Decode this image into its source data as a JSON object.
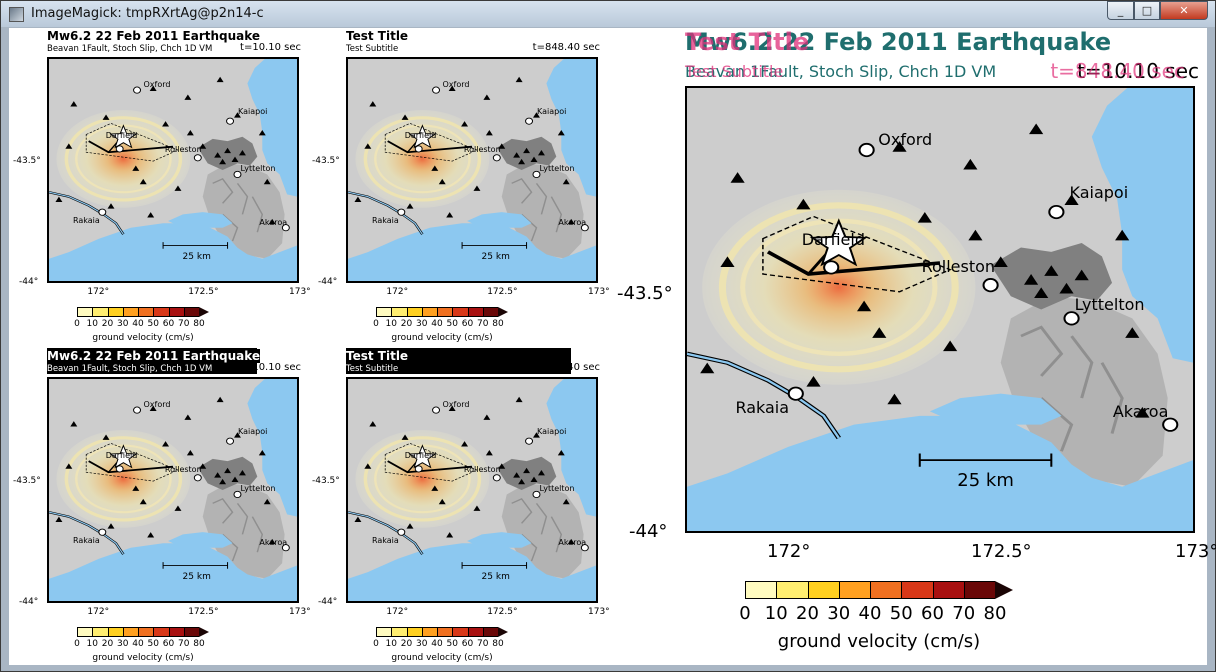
{
  "window": {
    "title": "ImageMagick: tmpRXrtAg@p2n14-c",
    "minimize": "_",
    "maximize": "□",
    "close": "✕"
  },
  "colors": {
    "land": "#cdcdcd",
    "sea": "#8cc8f0",
    "city": "#808080",
    "accent_title": "#1f6e6e",
    "accent_overlap": "#e0307a"
  },
  "panels": [
    {
      "title": "Mw6.2 22 Feb 2011 Earthquake",
      "subtitle": "Beavan 1Fault, Stoch Slip, Chch 1D VM",
      "time": "t=10.10 sec",
      "highlighted": false
    },
    {
      "title": "Test Title",
      "subtitle": "Test Subtitle",
      "time": "t=848.40 sec",
      "highlighted": false
    },
    {
      "title": "Mw6.2 22 Feb 2011 Earthquake",
      "subtitle": "Beavan 1Fault, Stoch Slip, Chch 1D VM",
      "time": "t=10.10 sec",
      "highlighted": true
    },
    {
      "title": "Test Title",
      "subtitle": "Test Subtitle",
      "time": "t=848.40 sec",
      "highlighted": true
    }
  ],
  "large": {
    "title_a": "Mw6.2 22 Feb 2011 Earthquake",
    "title_b": "Test Title",
    "subtitle_a": "Beavan 1Fault, Stoch Slip, Chch 1D VM",
    "subtitle_b": "Test Subtitle",
    "time_a": "t=10.10 sec",
    "time_b": "t=848.40 sec"
  },
  "map": {
    "towns": [
      "Oxford",
      "Kaiapoi",
      "Darfield",
      "Rolleston",
      "Lyttelton",
      "Rakaia",
      "Akaroa"
    ],
    "lat_labels": [
      "-43.5°",
      "-44°"
    ],
    "lon_labels": [
      "172°",
      "172.5°",
      "173°"
    ],
    "scale_label": "25 km"
  },
  "colorbar": {
    "label": "ground velocity (cm/s)",
    "ticks": [
      "0",
      "10",
      "20",
      "30",
      "40",
      "50",
      "60",
      "70",
      "80"
    ],
    "colors": [
      "#fffbc0",
      "#ffee70",
      "#ffd020",
      "#ffa020",
      "#f07020",
      "#d83818",
      "#a81010",
      "#6a0808"
    ],
    "arrow_color": "#1a0505"
  }
}
